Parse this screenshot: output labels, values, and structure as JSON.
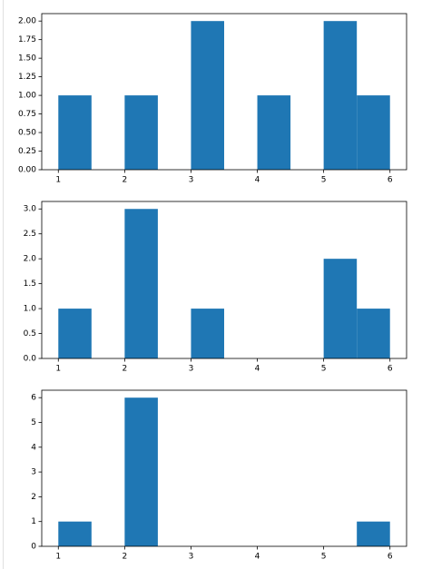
{
  "chart_data": [
    {
      "type": "histogram",
      "bins": [
        1,
        1.5,
        2,
        2.5,
        3,
        3.5,
        4,
        4.5,
        5,
        5.5,
        6
      ],
      "values": [
        1,
        0,
        1,
        0,
        2,
        0,
        1,
        0,
        2,
        1
      ],
      "color": "#1f77b4",
      "xlim": [
        0.75,
        6.25
      ],
      "xticks": [
        1,
        2,
        3,
        4,
        5,
        6
      ],
      "ylim": [
        0,
        2.1
      ],
      "yticks": [
        {
          "value": 0,
          "label": "0.00"
        },
        {
          "value": 0.25,
          "label": "0.25"
        },
        {
          "value": 0.5,
          "label": "0.50"
        },
        {
          "value": 0.75,
          "label": "0.75"
        },
        {
          "value": 1,
          "label": "1.00"
        },
        {
          "value": 1.25,
          "label": "1.25"
        },
        {
          "value": 1.5,
          "label": "1.50"
        },
        {
          "value": 1.75,
          "label": "1.75"
        },
        {
          "value": 2,
          "label": "2.00"
        }
      ]
    },
    {
      "type": "histogram",
      "bins": [
        1,
        1.5,
        2,
        2.5,
        3,
        3.5,
        4,
        4.5,
        5,
        5.5,
        6
      ],
      "values": [
        1,
        0,
        3,
        0,
        1,
        0,
        0,
        0,
        2,
        1
      ],
      "color": "#1f77b4",
      "xlim": [
        0.75,
        6.25
      ],
      "xticks": [
        1,
        2,
        3,
        4,
        5,
        6
      ],
      "ylim": [
        0,
        3.15
      ],
      "yticks": [
        {
          "value": 0,
          "label": "0.0"
        },
        {
          "value": 0.5,
          "label": "0.5"
        },
        {
          "value": 1,
          "label": "1.0"
        },
        {
          "value": 1.5,
          "label": "1.5"
        },
        {
          "value": 2,
          "label": "2.0"
        },
        {
          "value": 2.5,
          "label": "2.5"
        },
        {
          "value": 3,
          "label": "3.0"
        }
      ]
    },
    {
      "type": "histogram",
      "bins": [
        1,
        1.5,
        2,
        2.5,
        3,
        3.5,
        4,
        4.5,
        5,
        5.5,
        6
      ],
      "values": [
        1,
        0,
        6,
        0,
        0,
        0,
        0,
        0,
        0,
        1
      ],
      "color": "#1f77b4",
      "xlim": [
        0.75,
        6.25
      ],
      "xticks": [
        1,
        2,
        3,
        4,
        5,
        6
      ],
      "ylim": [
        0,
        6.3
      ],
      "yticks": [
        0,
        1,
        2,
        3,
        4,
        5,
        6
      ]
    }
  ]
}
